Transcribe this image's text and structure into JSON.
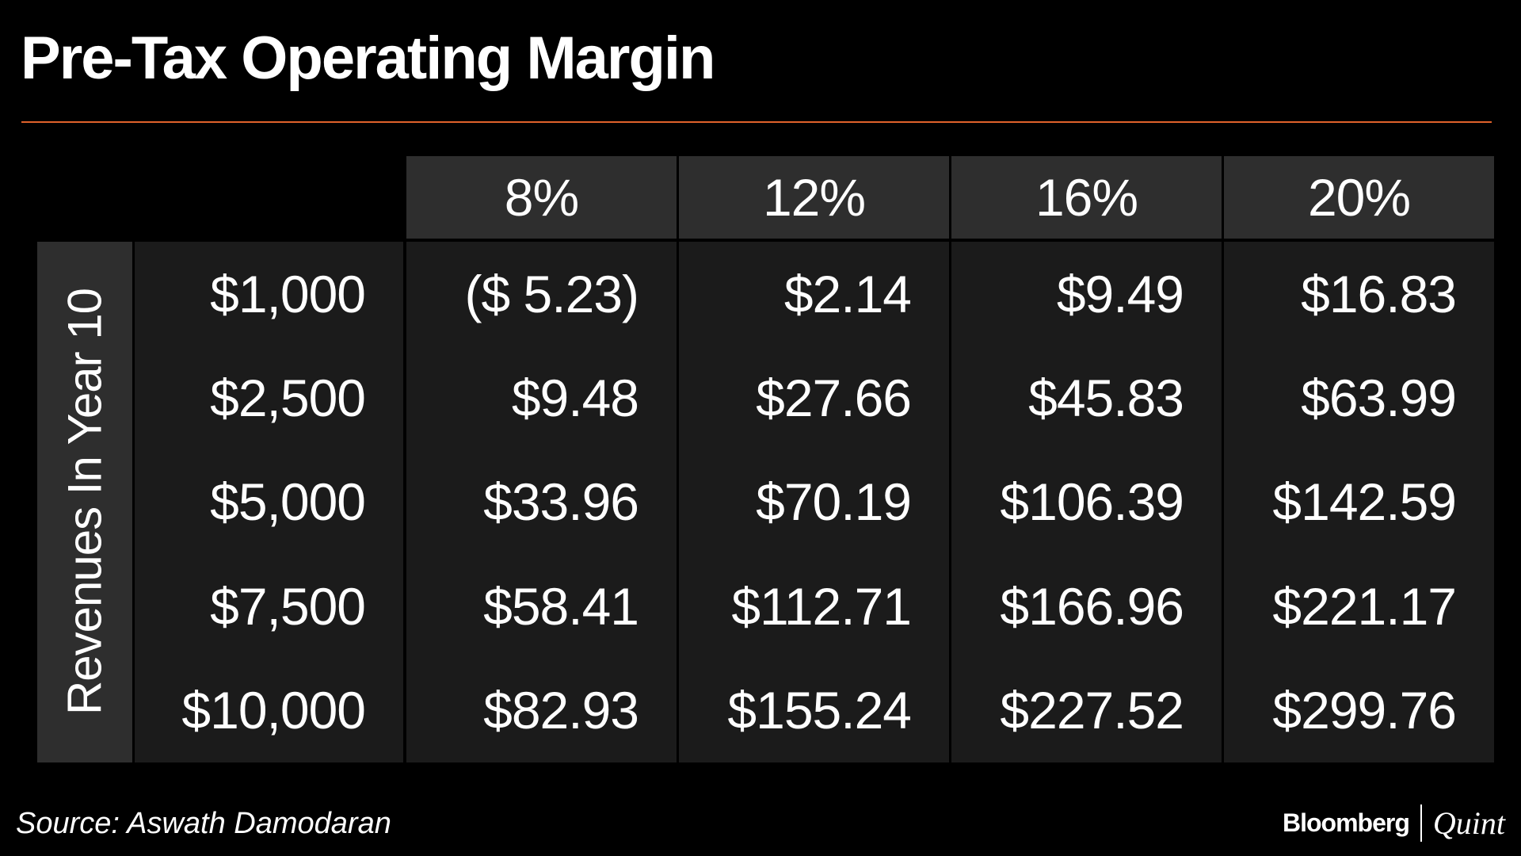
{
  "header": {
    "title": "Pre-Tax Operating Margin"
  },
  "table": {
    "row_label": "Revenues In Year 10",
    "columns": [
      "8%",
      "12%",
      "16%",
      "20%"
    ],
    "rows": [
      {
        "label": "$1,000",
        "cells": [
          "($ 5.23)",
          "$2.14",
          "$9.49",
          "$16.83"
        ]
      },
      {
        "label": "$2,500",
        "cells": [
          "$9.48",
          "$27.66",
          "$45.83",
          "$63.99"
        ]
      },
      {
        "label": "$5,000",
        "cells": [
          "$33.96",
          "$70.19",
          "$106.39",
          "$142.59"
        ]
      },
      {
        "label": "$7,500",
        "cells": [
          "$58.41",
          "$112.71",
          "$166.96",
          "$221.17"
        ]
      },
      {
        "label": "$10,000",
        "cells": [
          "$82.93",
          "$155.24",
          "$227.52",
          "$299.76"
        ]
      }
    ]
  },
  "footer": {
    "source": "Source: Aswath Damodaran",
    "brand": "Bloomberg",
    "brand_suffix": "Quint"
  }
}
